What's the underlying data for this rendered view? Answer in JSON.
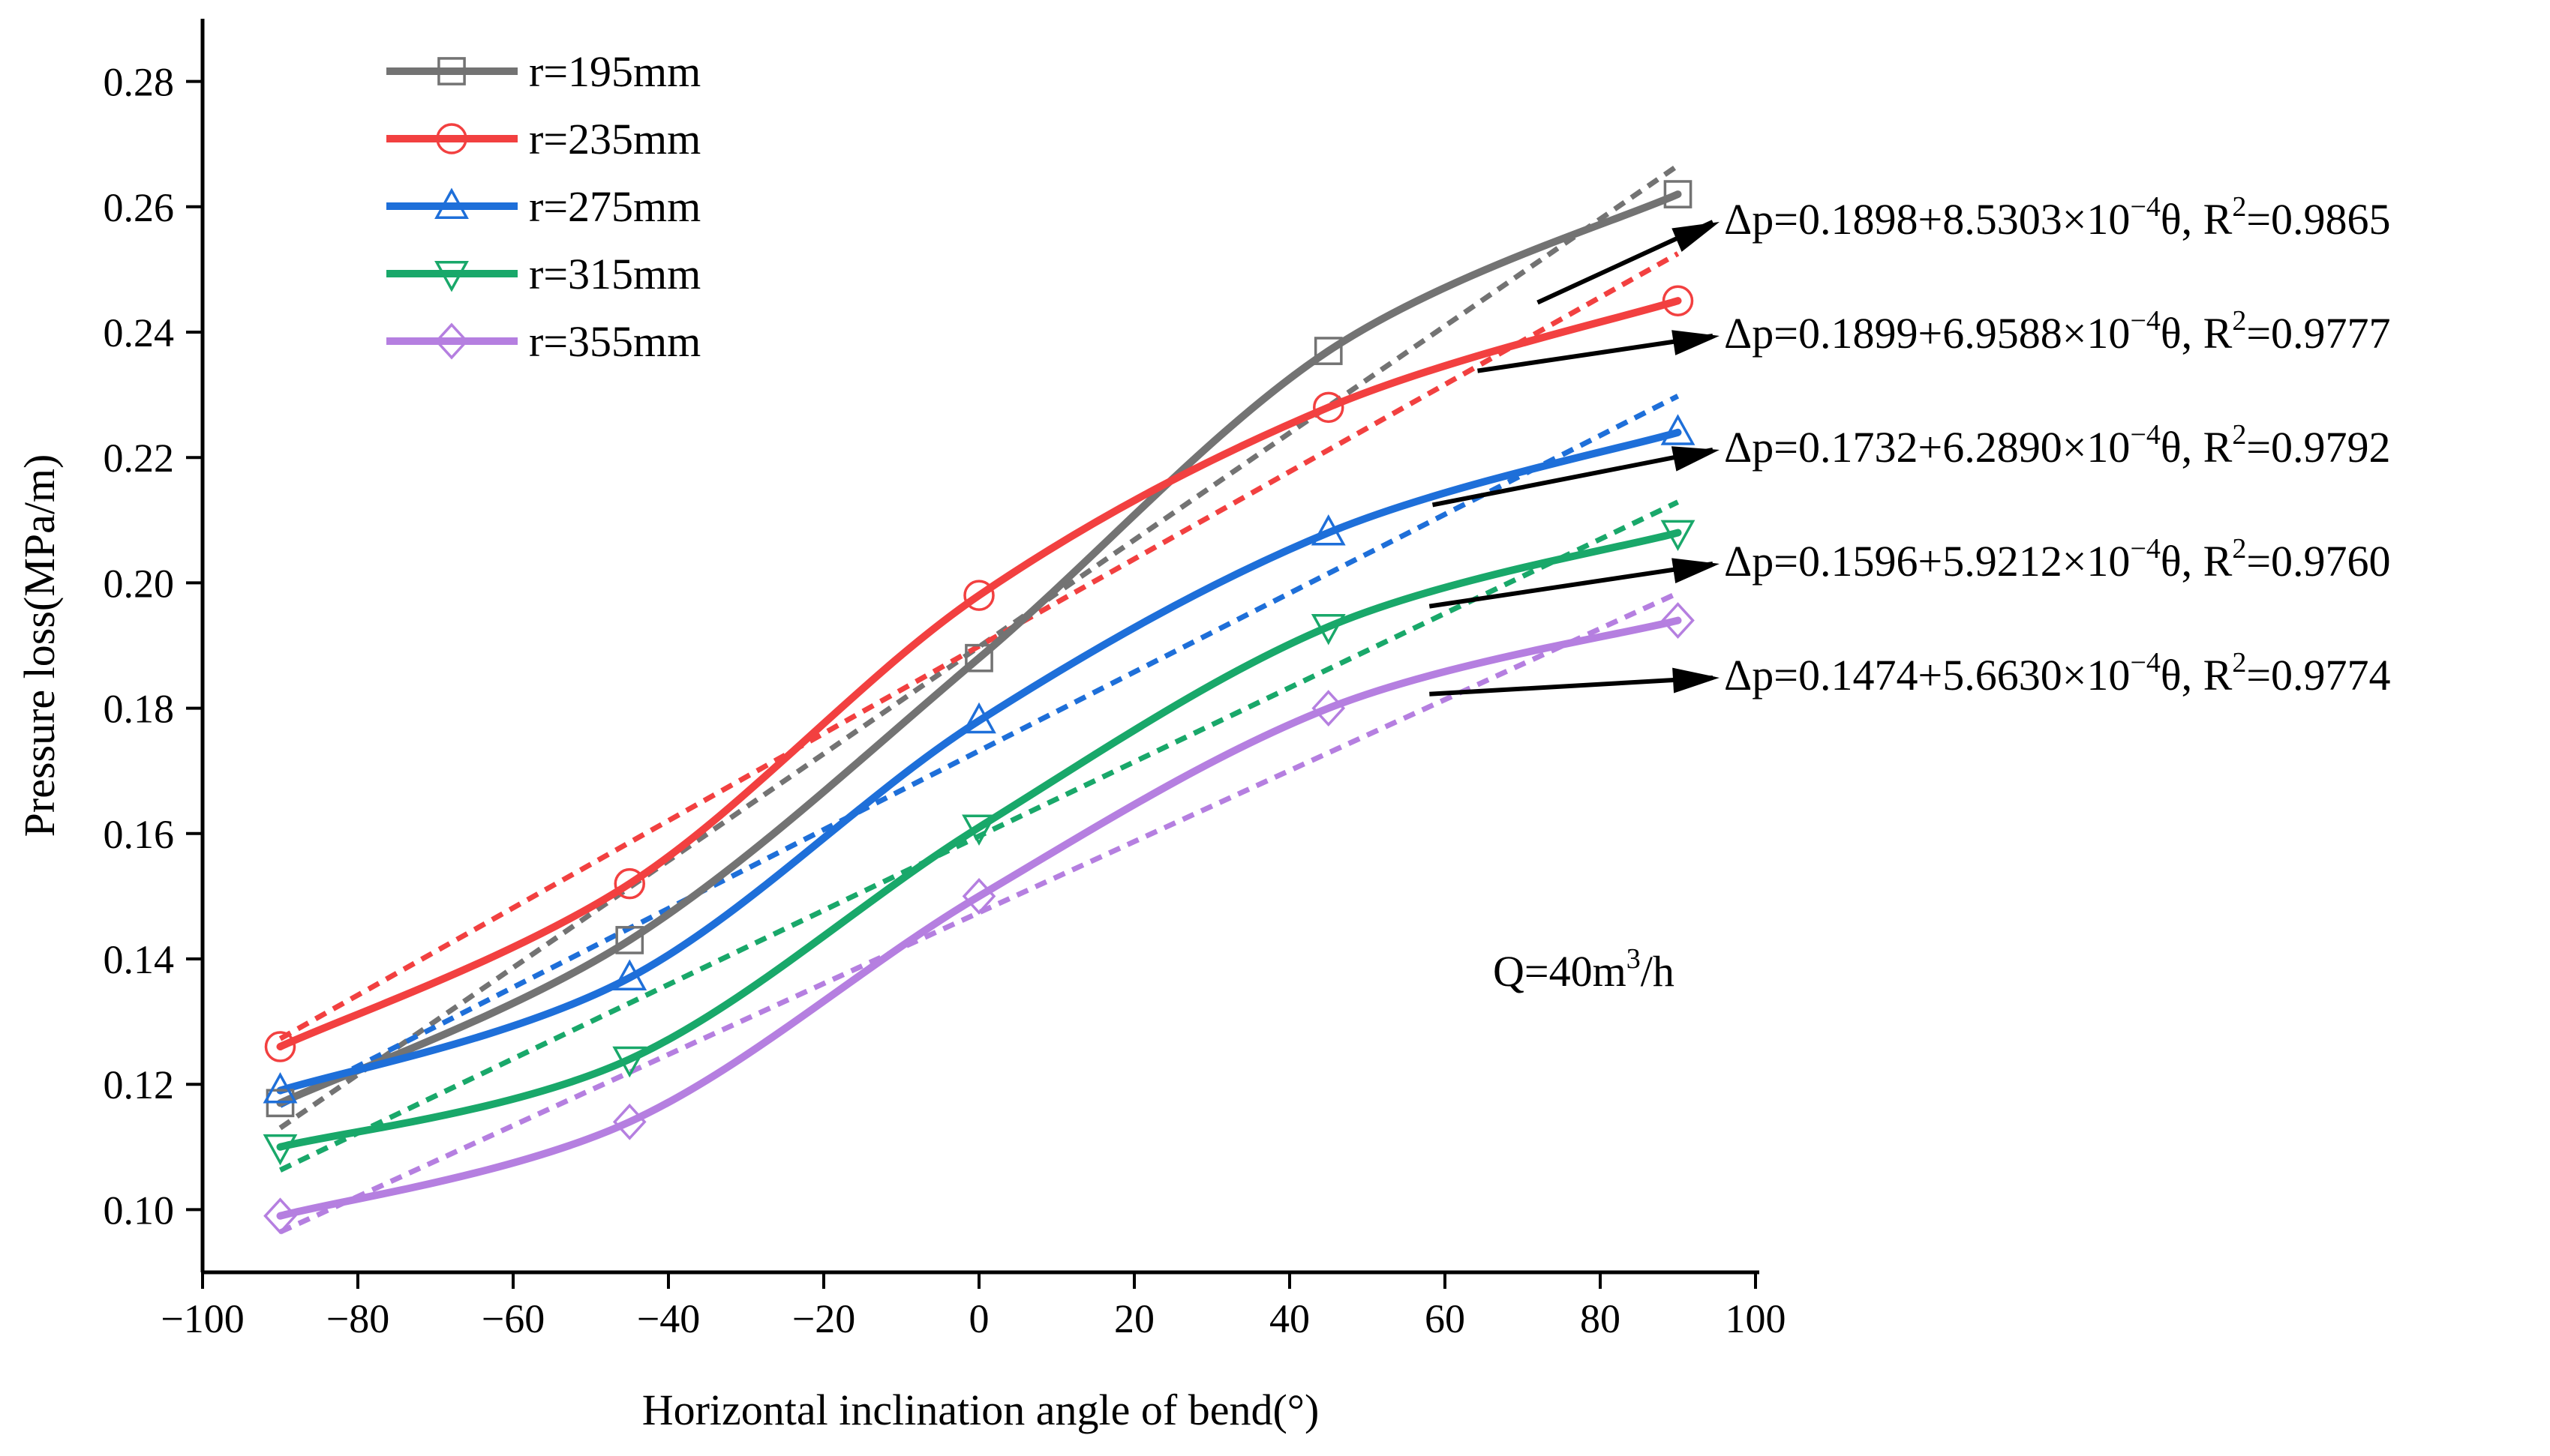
{
  "chart_data": {
    "type": "line",
    "xlabel": "Horizontal inclination angle of bend(°)",
    "ylabel": "Pressure loss(MPa/m)",
    "xlim": [
      -100,
      100
    ],
    "ylim": [
      0.09,
      0.29
    ],
    "x_ticks": [
      -100,
      -80,
      -60,
      -40,
      -20,
      0,
      20,
      40,
      60,
      80,
      100
    ],
    "x_tick_labels": [
      "−100",
      "−80",
      "−60",
      "−40",
      "−20",
      "0",
      "20",
      "40",
      "60",
      "80",
      "100"
    ],
    "y_ticks": [
      0.1,
      0.12,
      0.14,
      0.16,
      0.18,
      0.2,
      0.22,
      0.24,
      0.26,
      0.28
    ],
    "y_tick_labels": [
      "0.10",
      "0.12",
      "0.14",
      "0.16",
      "0.18",
      "0.20",
      "0.22",
      "0.24",
      "0.26",
      "0.28"
    ],
    "grid": false,
    "legend_position": "top-left",
    "annotation": {
      "main": "Q=40m",
      "sup": "3",
      "tail": "/h"
    },
    "x": [
      -90,
      -45,
      0,
      45,
      90
    ],
    "series": [
      {
        "name": "r=195mm",
        "color": "#737373",
        "marker": "square",
        "values": [
          0.117,
          0.143,
          0.188,
          0.237,
          0.262
        ],
        "fit": {
          "intercept": 0.1898,
          "slope": 0.00085303
        },
        "equation": {
          "pre": "Δp=0.1898+8.5303×10",
          "exp": "−4",
          "mid": "θ, R",
          "r2sup": "2",
          "post": "=0.9865"
        }
      },
      {
        "name": "r=235mm",
        "color": "#f24040",
        "marker": "circle",
        "values": [
          0.126,
          0.152,
          0.198,
          0.228,
          0.245
        ],
        "fit": {
          "intercept": 0.1899,
          "slope": 0.00069588
        },
        "equation": {
          "pre": "Δp=0.1899+6.9588×10",
          "exp": "−4",
          "mid": "θ, R",
          "r2sup": "2",
          "post": "=0.9777"
        }
      },
      {
        "name": "r=275mm",
        "color": "#1e6fd9",
        "marker": "triangle-up",
        "values": [
          0.119,
          0.137,
          0.178,
          0.208,
          0.224
        ],
        "fit": {
          "intercept": 0.1732,
          "slope": 0.0006289
        },
        "equation": {
          "pre": "Δp=0.1732+6.2890×10",
          "exp": "−4",
          "mid": "θ, R",
          "r2sup": "2",
          "post": "=0.9792"
        }
      },
      {
        "name": "r=315mm",
        "color": "#19a86a",
        "marker": "triangle-down",
        "values": [
          0.11,
          0.124,
          0.161,
          0.193,
          0.208
        ],
        "fit": {
          "intercept": 0.1596,
          "slope": 0.00059212
        },
        "equation": {
          "pre": "Δp=0.1596+5.9212×10",
          "exp": "−4",
          "mid": "θ, R",
          "r2sup": "2",
          "post": "=0.9760"
        }
      },
      {
        "name": "r=355mm",
        "color": "#b57fe0",
        "marker": "diamond",
        "values": [
          0.099,
          0.114,
          0.15,
          0.18,
          0.194
        ],
        "fit": {
          "intercept": 0.1474,
          "slope": 0.0005663
        },
        "equation": {
          "pre": "Δp=0.1474+5.6630×10",
          "exp": "−4",
          "mid": "θ, R",
          "r2sup": "2",
          "post": "=0.9774"
        }
      }
    ]
  }
}
